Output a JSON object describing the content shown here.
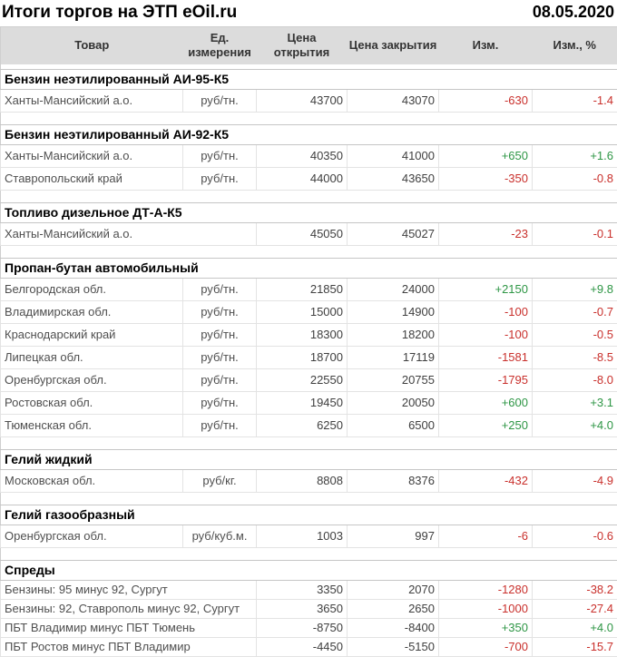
{
  "title": "Итоги торгов на ЭТП eOil.ru",
  "date": "08.05.2020",
  "colors": {
    "positive": "#2e9645",
    "negative": "#c9302c",
    "header_bg": "#dcdcdc"
  },
  "columns": [
    {
      "key": "product",
      "label": "Товар"
    },
    {
      "key": "unit",
      "label": "Ед. измерения"
    },
    {
      "key": "open",
      "label": "Цена открытия"
    },
    {
      "key": "close",
      "label": "Цена закрытия"
    },
    {
      "key": "change",
      "label": "Изм."
    },
    {
      "key": "change_pct",
      "label": "Изм., %"
    }
  ],
  "groups": [
    {
      "name": "Бензин неэтилированный АИ-95-К5",
      "rows": [
        {
          "product": "Ханты-Мансийский а.о.",
          "unit": "руб/тн.",
          "open": "43700",
          "close": "43070",
          "change": "-630",
          "change_pct": "-1.4"
        }
      ]
    },
    {
      "name": "Бензин неэтилированный АИ-92-К5",
      "rows": [
        {
          "product": "Ханты-Мансийский а.о.",
          "unit": "руб/тн.",
          "open": "40350",
          "close": "41000",
          "change": "+650",
          "change_pct": "+1.6"
        },
        {
          "product": "Ставропольский край",
          "unit": "руб/тн.",
          "open": "44000",
          "close": "43650",
          "change": "-350",
          "change_pct": "-0.8"
        }
      ]
    },
    {
      "name": "Топливо дизельное ДТ-А-К5",
      "rows": [
        {
          "product": "Ханты-Мансийский а.о.",
          "unit": "",
          "open": "45050",
          "close": "45027",
          "change": "-23",
          "change_pct": "-0.1"
        }
      ]
    },
    {
      "name": "Пропан-бутан автомобильный",
      "rows": [
        {
          "product": "Белгородская обл.",
          "unit": "руб/тн.",
          "open": "21850",
          "close": "24000",
          "change": "+2150",
          "change_pct": "+9.8"
        },
        {
          "product": "Владимирская обл.",
          "unit": "руб/тн.",
          "open": "15000",
          "close": "14900",
          "change": "-100",
          "change_pct": "-0.7"
        },
        {
          "product": "Краснодарский край",
          "unit": "руб/тн.",
          "open": "18300",
          "close": "18200",
          "change": "-100",
          "change_pct": "-0.5"
        },
        {
          "product": "Липецкая обл.",
          "unit": "руб/тн.",
          "open": "18700",
          "close": "17119",
          "change": "-1581",
          "change_pct": "-8.5"
        },
        {
          "product": "Оренбургская обл.",
          "unit": "руб/тн.",
          "open": "22550",
          "close": "20755",
          "change": "-1795",
          "change_pct": "-8.0"
        },
        {
          "product": "Ростовская обл.",
          "unit": "руб/тн.",
          "open": "19450",
          "close": "20050",
          "change": "+600",
          "change_pct": "+3.1"
        },
        {
          "product": "Тюменская обл.",
          "unit": "руб/тн.",
          "open": "6250",
          "close": "6500",
          "change": "+250",
          "change_pct": "+4.0"
        }
      ]
    },
    {
      "name": "Гелий жидкий",
      "rows": [
        {
          "product": "Московская обл.",
          "unit": "руб/кг.",
          "open": "8808",
          "close": "8376",
          "change": "-432",
          "change_pct": "-4.9"
        }
      ]
    },
    {
      "name": "Гелий газообразный",
      "rows": [
        {
          "product": "Оренбургская обл.",
          "unit": "руб/куб.м.",
          "open": "1003",
          "close": "997",
          "change": "-6",
          "change_pct": "-0.6"
        }
      ]
    },
    {
      "name": "Спреды",
      "rows": [
        {
          "product": "Бензины: 95 минус 92, Сургут",
          "unit": "",
          "open": "3350",
          "close": "2070",
          "change": "-1280",
          "change_pct": "-38.2"
        },
        {
          "product": "Бензины: 92, Ставрополь минус 92, Сургут",
          "unit": "",
          "open": "3650",
          "close": "2650",
          "change": "-1000",
          "change_pct": "-27.4"
        },
        {
          "product": "ПБТ Владимир минус ПБТ Тюмень",
          "unit": "",
          "open": "-8750",
          "close": "-8400",
          "change": "+350",
          "change_pct": "+4.0"
        },
        {
          "product": "ПБТ Ростов минус ПБТ Владимир",
          "unit": "",
          "open": "-4450",
          "close": "-5150",
          "change": "-700",
          "change_pct": "-15.7"
        }
      ]
    }
  ],
  "chart_data": {
    "type": "table",
    "title": "Итоги торгов на ЭТП eOil.ru",
    "date": "08.05.2020",
    "columns": [
      "Товар",
      "Ед. измерения",
      "Цена открытия",
      "Цена закрытия",
      "Изм.",
      "Изм., %"
    ]
  }
}
